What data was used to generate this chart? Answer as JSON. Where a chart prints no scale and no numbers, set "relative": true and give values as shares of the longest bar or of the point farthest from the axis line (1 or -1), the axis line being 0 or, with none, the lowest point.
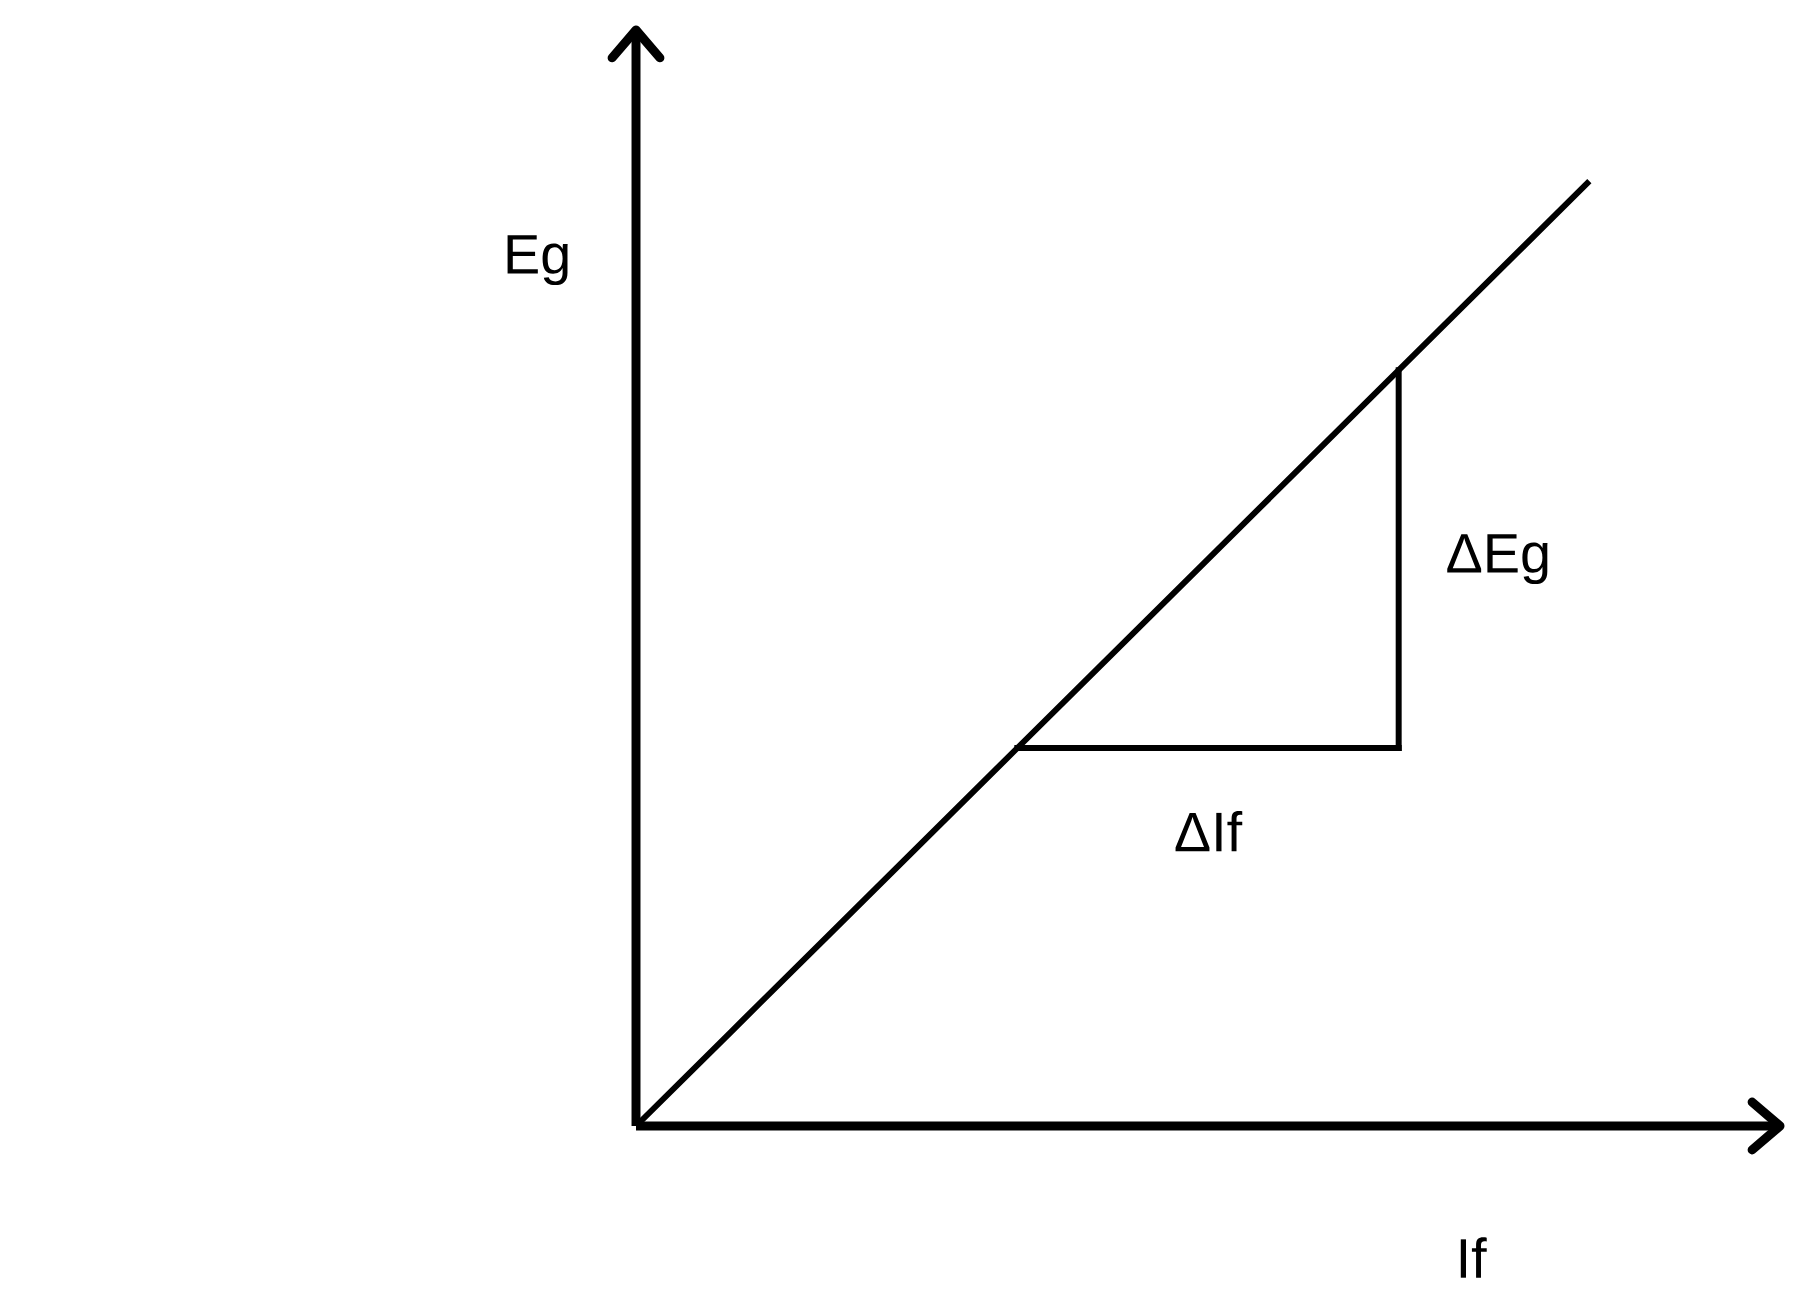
{
  "chart_data": {
    "type": "line",
    "relative": true,
    "xlabel": "If",
    "ylabel": "Eg",
    "marker": "none",
    "line_style": "solid",
    "annotations": [
      "ΔEg",
      "ΔIf"
    ],
    "categories": [
      null,
      null,
      null,
      null,
      null,
      null,
      null,
      null,
      null,
      null,
      null
    ],
    "series": [
      {
        "color": "#000000",
        "values": [
          0,
          0.1,
          0.2,
          0.3,
          0.4,
          0.5,
          0.6,
          0.7,
          0.8,
          0.9,
          1
        ]
      }
    ]
  }
}
